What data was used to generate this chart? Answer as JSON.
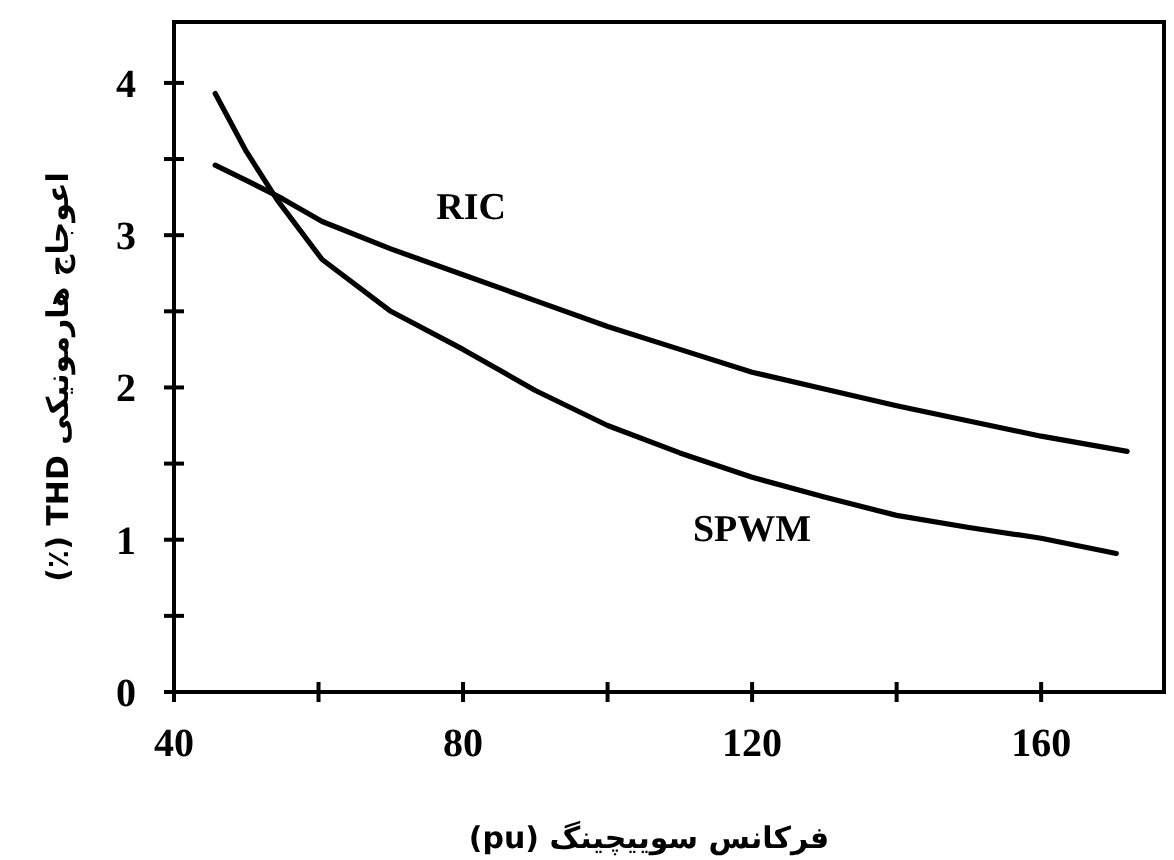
{
  "chart_data": {
    "type": "line",
    "xlabel": "فرکانس سوییچینگ (pu)",
    "ylabel": "اعوجاج هارمونیکی THD (٪)",
    "xlim": [
      40,
      177
    ],
    "ylim": [
      0,
      4.4
    ],
    "xticks": [
      40,
      {
        "value": 60,
        "label": null
      },
      80,
      {
        "value": 100,
        "label": null
      },
      120,
      {
        "value": 140,
        "label": null
      },
      160
    ],
    "yticks": [
      0,
      {
        "value": 0.5,
        "label": null
      },
      1,
      {
        "value": 1.5,
        "label": null
      },
      2,
      {
        "value": 2.5,
        "label": null
      },
      3,
      {
        "value": 3.5,
        "label": null
      },
      4
    ],
    "grid": false,
    "marker": "none",
    "line_style": "solid",
    "series": [
      {
        "name": "RIC",
        "color": "#000000",
        "x": [
          45.7,
          50,
          55,
          60.5,
          70,
          80,
          90,
          100,
          110,
          120,
          130,
          140,
          150,
          160,
          171.9
        ],
        "values": [
          3.46,
          3.36,
          3.24,
          3.09,
          2.91,
          2.74,
          2.57,
          2.4,
          2.25,
          2.1,
          1.99,
          1.88,
          1.78,
          1.68,
          1.58
        ]
      },
      {
        "name": "SPWM",
        "color": "#000000",
        "x": [
          45.7,
          50,
          54.3,
          60.5,
          70,
          80,
          90,
          100,
          110,
          120,
          130,
          140,
          150,
          160,
          170.4
        ],
        "values": [
          3.93,
          3.55,
          3.23,
          2.84,
          2.5,
          2.25,
          1.98,
          1.75,
          1.57,
          1.41,
          1.28,
          1.16,
          1.08,
          1.01,
          0.91
        ]
      }
    ]
  }
}
